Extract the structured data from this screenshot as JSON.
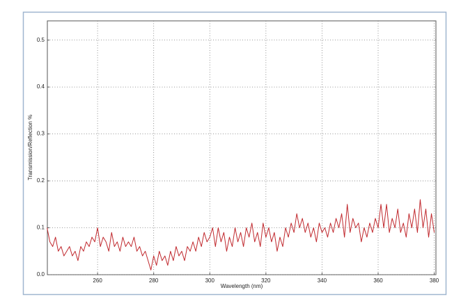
{
  "chart_data": {
    "type": "line",
    "x_label": "Wavelength (nm)",
    "y_label": "Transmission/Reflection %",
    "x": [
      242,
      243,
      244,
      245,
      246,
      247,
      248,
      249,
      250,
      251,
      252,
      253,
      254,
      255,
      256,
      257,
      258,
      259,
      260,
      261,
      262,
      263,
      264,
      265,
      266,
      267,
      268,
      269,
      270,
      271,
      272,
      273,
      274,
      275,
      276,
      277,
      278,
      279,
      280,
      281,
      282,
      283,
      284,
      285,
      286,
      287,
      288,
      289,
      290,
      291,
      292,
      293,
      294,
      295,
      296,
      297,
      298,
      299,
      300,
      301,
      302,
      303,
      304,
      305,
      306,
      307,
      308,
      309,
      310,
      311,
      312,
      313,
      314,
      315,
      316,
      317,
      318,
      319,
      320,
      321,
      322,
      323,
      324,
      325,
      326,
      327,
      328,
      329,
      330,
      331,
      332,
      333,
      334,
      335,
      336,
      337,
      338,
      339,
      340,
      341,
      342,
      343,
      344,
      345,
      346,
      347,
      348,
      349,
      350,
      351,
      352,
      353,
      354,
      355,
      356,
      357,
      358,
      359,
      360,
      361,
      362,
      363,
      364,
      365,
      366,
      367,
      368,
      369,
      370,
      371,
      372,
      373,
      374,
      375,
      376,
      377,
      378,
      379,
      380
    ],
    "series": [
      {
        "name": "Transmission/Reflection %",
        "color": "#c0282d",
        "values": [
          0.1,
          0.07,
          0.06,
          0.08,
          0.05,
          0.06,
          0.04,
          0.05,
          0.06,
          0.04,
          0.05,
          0.03,
          0.06,
          0.05,
          0.07,
          0.06,
          0.08,
          0.07,
          0.1,
          0.06,
          0.08,
          0.07,
          0.05,
          0.09,
          0.06,
          0.07,
          0.05,
          0.08,
          0.06,
          0.07,
          0.06,
          0.08,
          0.05,
          0.06,
          0.04,
          0.05,
          0.03,
          0.01,
          0.04,
          0.02,
          0.05,
          0.03,
          0.04,
          0.02,
          0.05,
          0.03,
          0.06,
          0.04,
          0.05,
          0.03,
          0.06,
          0.05,
          0.07,
          0.05,
          0.08,
          0.06,
          0.09,
          0.07,
          0.08,
          0.1,
          0.06,
          0.1,
          0.07,
          0.09,
          0.05,
          0.08,
          0.06,
          0.1,
          0.07,
          0.09,
          0.06,
          0.1,
          0.08,
          0.11,
          0.07,
          0.09,
          0.06,
          0.11,
          0.08,
          0.1,
          0.07,
          0.09,
          0.05,
          0.08,
          0.06,
          0.1,
          0.08,
          0.11,
          0.09,
          0.13,
          0.1,
          0.12,
          0.09,
          0.11,
          0.08,
          0.1,
          0.07,
          0.11,
          0.09,
          0.1,
          0.08,
          0.11,
          0.09,
          0.12,
          0.1,
          0.13,
          0.08,
          0.15,
          0.09,
          0.12,
          0.1,
          0.11,
          0.07,
          0.1,
          0.08,
          0.11,
          0.09,
          0.12,
          0.1,
          0.15,
          0.1,
          0.15,
          0.09,
          0.12,
          0.1,
          0.14,
          0.09,
          0.11,
          0.08,
          0.13,
          0.1,
          0.14,
          0.09,
          0.16,
          0.1,
          0.14,
          0.08,
          0.13,
          0.09
        ]
      }
    ],
    "xlim": [
      242.1,
      380.6
    ],
    "ylim": [
      0,
      0.541
    ],
    "xticks": [
      260,
      280,
      300,
      320,
      340,
      360,
      380
    ],
    "yticks": [
      {
        "value": 0,
        "label": "0.0"
      },
      0.1,
      0.2,
      0.3,
      0.4,
      0.5
    ],
    "grid": true
  }
}
